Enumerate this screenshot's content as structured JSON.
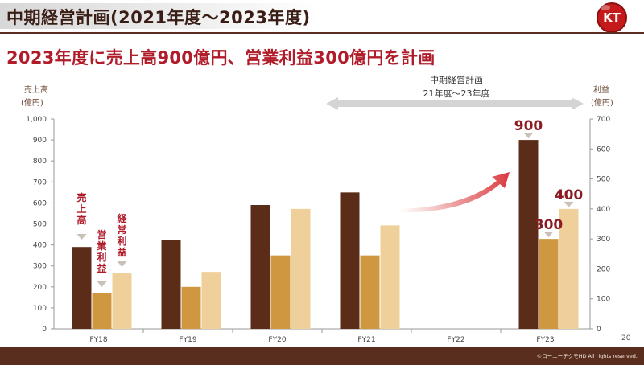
{
  "header": {
    "title": "中期経営計画(2021年度～2023年度)",
    "logo_text": "KT"
  },
  "headline": "2023年度に売上高900億円、営業利益300億円を計画",
  "plan_label": {
    "line1": "中期経営計画",
    "line2": "21年度～23年度"
  },
  "legend_labels": {
    "sales": "売上高",
    "operating_profit": "営業利益",
    "ordinary_profit": "経常利益"
  },
  "target_labels": {
    "sales": "900",
    "operating_profit": "300",
    "ordinary_profit": "400"
  },
  "page_number": "20",
  "copyright": "©コーエーテクモHD All rights reserved.",
  "colors": {
    "sales": "#5b2c17",
    "operating_profit": "#cf9840",
    "ordinary_profit": "#f0d09a",
    "accent_red": "#b01c2a",
    "footer": "#5a2e1e"
  },
  "chart_data": {
    "type": "bar",
    "categories": [
      "FY18",
      "FY19",
      "FY20",
      "FY21",
      "FY22",
      "FY23"
    ],
    "series": [
      {
        "name": "売上高",
        "axis": "left",
        "values": [
          390,
          425,
          590,
          650,
          null,
          900
        ]
      },
      {
        "name": "営業利益",
        "axis": "right",
        "values": [
          120,
          140,
          245,
          245,
          null,
          300
        ]
      },
      {
        "name": "経常利益",
        "axis": "right",
        "values": [
          185,
          190,
          400,
          345,
          null,
          400
        ]
      }
    ],
    "left_axis": {
      "label_line1": "売上高",
      "label_line2": "(億円)",
      "range": [
        0,
        1000
      ],
      "ticks": [
        "0",
        "100",
        "200",
        "300",
        "400",
        "500",
        "600",
        "700",
        "800",
        "900",
        "1,000"
      ]
    },
    "right_axis": {
      "label_line1": "利益",
      "label_line2": "(億円)",
      "range": [
        0,
        700
      ],
      "ticks": [
        "0",
        "100",
        "200",
        "300",
        "400",
        "500",
        "600",
        "700"
      ]
    },
    "grid": false
  }
}
